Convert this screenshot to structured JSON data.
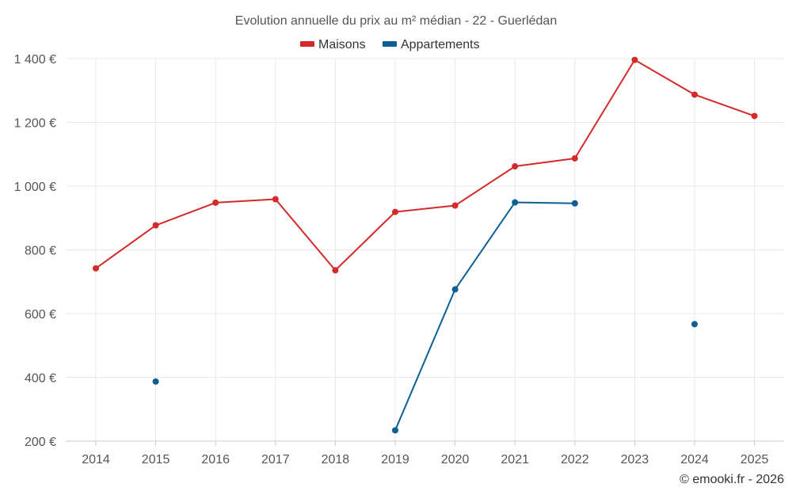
{
  "chart_data": {
    "type": "line",
    "title": "Evolution annuelle du prix au m² médian - 22 - Guerlédan",
    "categories": [
      "2014",
      "2015",
      "2016",
      "2017",
      "2018",
      "2019",
      "2020",
      "2021",
      "2022",
      "2023",
      "2024",
      "2025"
    ],
    "ylim": [
      200,
      1400
    ],
    "yticks": [
      200,
      400,
      600,
      800,
      1000,
      1200,
      1400
    ],
    "ytick_labels": [
      "200 €",
      "400 €",
      "600 €",
      "800 €",
      "1 000 €",
      "1 200 €",
      "1 400 €"
    ],
    "grid": true,
    "legend_position": "top-center",
    "series": [
      {
        "name": "Maisons",
        "color": "#d42a2a",
        "values": [
          742,
          877,
          948,
          959,
          736,
          919,
          939,
          1062,
          1087,
          1396,
          1287,
          1220
        ]
      },
      {
        "name": "Appartements",
        "color": "#0b5f95",
        "values": [
          null,
          387,
          null,
          null,
          null,
          234,
          676,
          949,
          946,
          null,
          567,
          null
        ]
      }
    ],
    "credit": "© emooki.fr - 2026"
  }
}
